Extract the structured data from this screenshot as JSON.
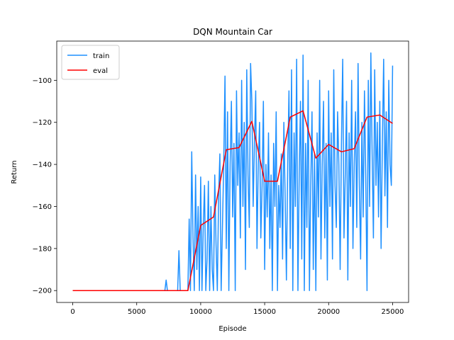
{
  "chart_data": {
    "type": "line",
    "title": "DQN Mountain Car",
    "xlabel": "Episode",
    "ylabel": "Return",
    "xlim": [
      -1250,
      26250
    ],
    "ylim": [
      -205.65,
      -81.35
    ],
    "xticks": [
      0,
      5000,
      10000,
      15000,
      20000,
      25000
    ],
    "yticks": [
      {
        "value": -200,
        "label": "−200"
      },
      {
        "value": -180,
        "label": "−180"
      },
      {
        "value": -160,
        "label": "−160"
      },
      {
        "value": -140,
        "label": "−140"
      },
      {
        "value": -120,
        "label": "−120"
      },
      {
        "value": -100,
        "label": "−100"
      }
    ],
    "legend": "upper left",
    "series": [
      {
        "name": "train",
        "color": "#1e90ff",
        "x": [
          0,
          7000,
          7100,
          7200,
          7300,
          7400,
          7500,
          7600,
          7700,
          7800,
          7900,
          8000,
          8100,
          8200,
          8300,
          8400,
          8500,
          8600,
          8700,
          8800,
          8900,
          9000,
          9100,
          9200,
          9300,
          9400,
          9500,
          9600,
          9700,
          9800,
          9900,
          10000,
          10100,
          10200,
          10300,
          10400,
          10500,
          10600,
          10700,
          10800,
          10900,
          11000,
          11100,
          11200,
          11300,
          11400,
          11500,
          11600,
          11700,
          11800,
          11900,
          12000,
          12100,
          12200,
          12300,
          12400,
          12500,
          12600,
          12700,
          12800,
          12900,
          13000,
          13100,
          13200,
          13300,
          13400,
          13500,
          13600,
          13700,
          13800,
          13900,
          14000,
          14100,
          14200,
          14300,
          14400,
          14500,
          14600,
          14700,
          14800,
          14900,
          15000,
          15100,
          15200,
          15300,
          15400,
          15500,
          15600,
          15700,
          15800,
          15900,
          16000,
          16100,
          16200,
          16300,
          16400,
          16500,
          16600,
          16700,
          16800,
          16900,
          17000,
          17100,
          17200,
          17300,
          17400,
          17500,
          17600,
          17700,
          17800,
          17900,
          18000,
          18100,
          18200,
          18300,
          18400,
          18500,
          18600,
          18700,
          18800,
          18900,
          19000,
          19100,
          19200,
          19300,
          19400,
          19500,
          19600,
          19700,
          19800,
          19900,
          20000,
          20100,
          20200,
          20300,
          20400,
          20500,
          20600,
          20700,
          20800,
          20900,
          21000,
          21100,
          21200,
          21300,
          21400,
          21500,
          21600,
          21700,
          21800,
          21900,
          22000,
          22100,
          22200,
          22300,
          22400,
          22500,
          22600,
          22700,
          22800,
          22900,
          23000,
          23100,
          23200,
          23300,
          23400,
          23500,
          23600,
          23700,
          23800,
          23900,
          24000,
          24100,
          24200,
          24300,
          24400,
          24500,
          24600,
          24700,
          24800,
          24900,
          25000
        ],
        "values": [
          -200,
          -200,
          -200,
          -200,
          -195,
          -200,
          -200,
          -200,
          -200,
          -200,
          -200,
          -200,
          -200,
          -200,
          -181,
          -200,
          -200,
          -200,
          -200,
          -200,
          -200,
          -200,
          -166,
          -200,
          -134,
          -175,
          -200,
          -145,
          -190,
          -160,
          -200,
          -146,
          -200,
          -170,
          -150,
          -200,
          -185,
          -148,
          -200,
          -160,
          -190,
          -200,
          -145,
          -178,
          -200,
          -155,
          -135,
          -200,
          -170,
          -140,
          -98,
          -180,
          -115,
          -200,
          -140,
          -110,
          -165,
          -130,
          -200,
          -105,
          -150,
          -125,
          -175,
          -100,
          -160,
          -120,
          -190,
          -95,
          -145,
          -170,
          -92,
          -110,
          -160,
          -130,
          -105,
          -180,
          -140,
          -120,
          -175,
          -150,
          -110,
          -190,
          -140,
          -165,
          -125,
          -180,
          -145,
          -200,
          -130,
          -160,
          -115,
          -200,
          -150,
          -170,
          -135,
          -185,
          -120,
          -155,
          -195,
          -140,
          -105,
          -180,
          -95,
          -200,
          -125,
          -160,
          -90,
          -200,
          -145,
          -110,
          -185,
          -88,
          -200,
          -130,
          -170,
          -100,
          -200,
          -150,
          -115,
          -190,
          -135,
          -200,
          -125,
          -165,
          -100,
          -185,
          -140,
          -110,
          -175,
          -130,
          -195,
          -105,
          -160,
          -125,
          -185,
          -95,
          -150,
          -170,
          -115,
          -140,
          -190,
          -130,
          -90,
          -175,
          -145,
          -110,
          -195,
          -125,
          -160,
          -100,
          -180,
          -140,
          -115,
          -170,
          -92,
          -150,
          -185,
          -120,
          -165,
          -105,
          -145,
          -200,
          -100,
          -160,
          -87,
          -135,
          -175,
          -95,
          -150,
          -120,
          -165,
          -110,
          -180,
          -130,
          -90,
          -155,
          -115,
          -170,
          -100,
          -140,
          -150,
          -93
        ]
      },
      {
        "name": "eval",
        "color": "#ff0000",
        "x": [
          0,
          1000,
          2000,
          3000,
          4000,
          5000,
          6000,
          7000,
          8000,
          9000,
          10000,
          11000,
          12000,
          13000,
          14000,
          15000,
          16000,
          17000,
          18000,
          19000,
          20000,
          21000,
          22000,
          23000,
          24000,
          25000
        ],
        "values": [
          -200,
          -200,
          -200,
          -200,
          -200,
          -200,
          -200,
          -200,
          -200,
          -200,
          -169,
          -165,
          -133,
          -132,
          -119.5,
          -148,
          -148,
          -117.5,
          -114.5,
          -137,
          -130.5,
          -134,
          -132.5,
          -117.5,
          -116.5,
          -120.5
        ]
      }
    ]
  }
}
